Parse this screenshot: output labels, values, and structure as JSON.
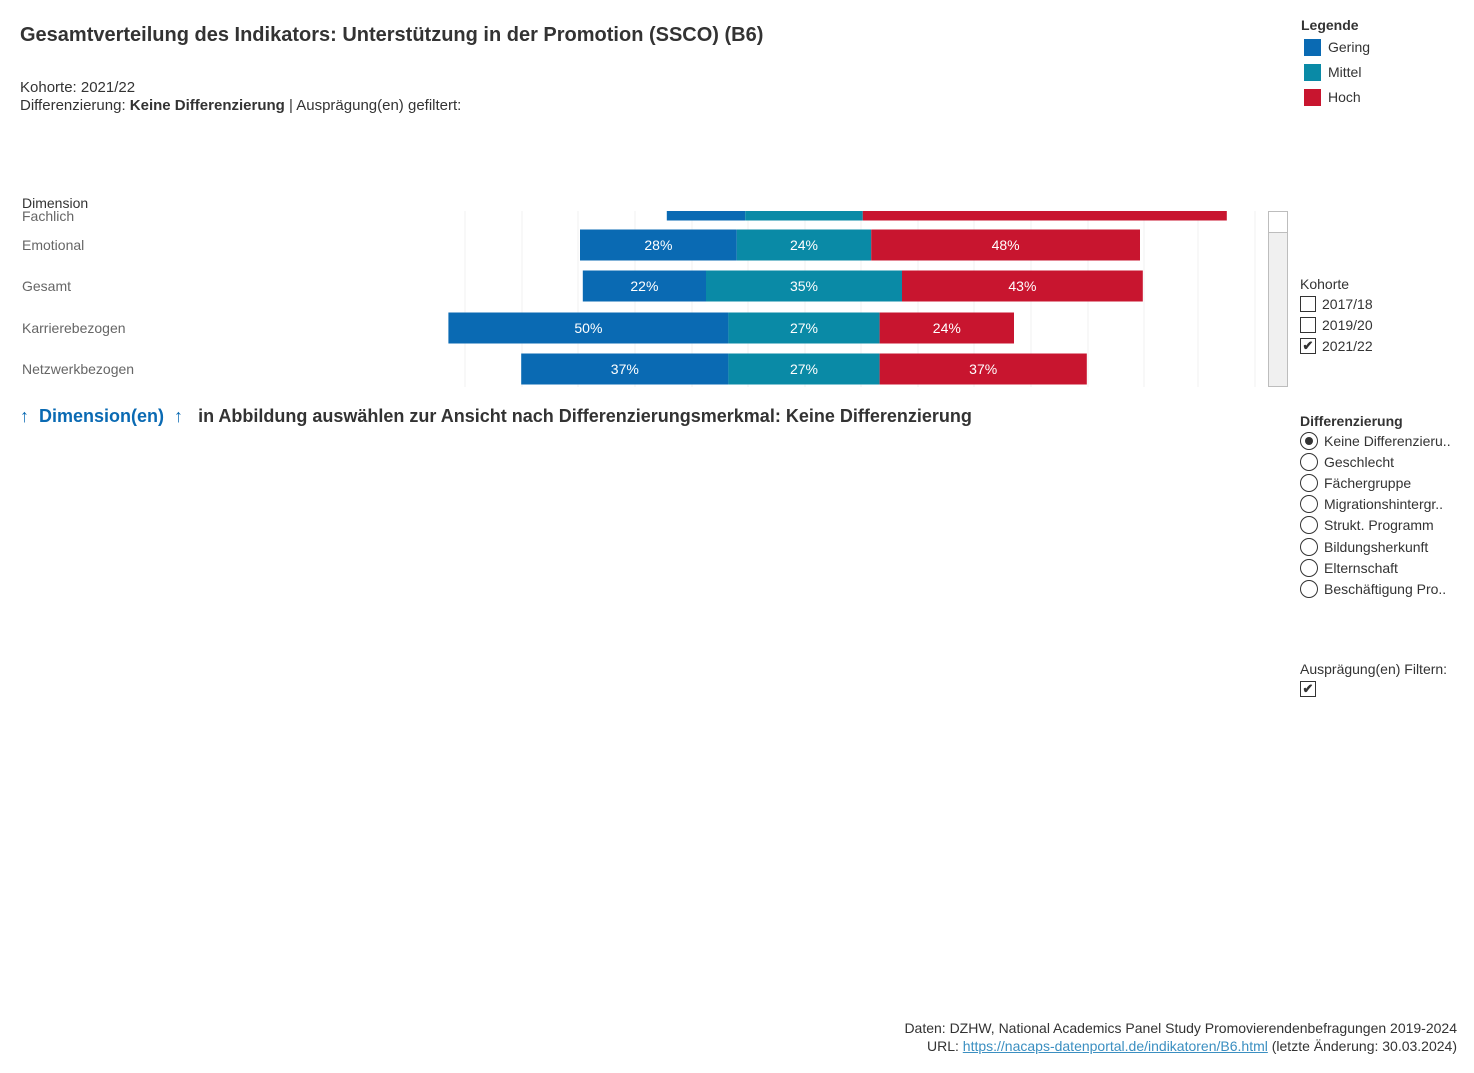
{
  "header": {
    "title": "Gesamtverteilung des Indikators: Unterstützung in der Promotion (SSCO) (B6)",
    "cohort_line": "Kohorte: 2021/22",
    "diff_prefix": "Differenzierung: ",
    "diff_value": "Keine Differenzierung",
    "diff_suffix": " | Ausprägung(en) gefiltert:"
  },
  "chart_data": {
    "type": "bar",
    "stacked": true,
    "diverging": true,
    "row_header": "Dimension",
    "categories": [
      "Fachlich",
      "Emotional",
      "Gesamt",
      "Karrierebezogen",
      "Netzwerkbezogen"
    ],
    "series": [
      {
        "name": "Gering",
        "color": "#0a6ab3",
        "values": [
          14,
          28,
          22,
          50,
          37
        ],
        "labels": [
          "",
          "28%",
          "22%",
          "50%",
          "37%"
        ]
      },
      {
        "name": "Mittel",
        "color": "#0a8aa6",
        "values": [
          21,
          24,
          35,
          27,
          27
        ],
        "labels": [
          "",
          "24%",
          "35%",
          "27%",
          "27%"
        ]
      },
      {
        "name": "Hoch",
        "color": "#c8152f",
        "values": [
          65,
          48,
          43,
          24,
          37
        ],
        "labels": [
          "",
          "48%",
          "43%",
          "24%",
          "37%"
        ]
      }
    ],
    "gridlines": true
  },
  "hint": {
    "arrow_left": "↑",
    "dimension": "Dimension(en)",
    "arrow_right": "↑",
    "text": "in Abbildung auswählen zur Ansicht nach Differenzierungsmerkmal: Keine Differenzierung"
  },
  "legend": {
    "title": "Legende",
    "items": [
      {
        "label": "Gering",
        "color": "#0a6ab3"
      },
      {
        "label": "Mittel",
        "color": "#0a8aa6"
      },
      {
        "label": "Hoch",
        "color": "#c8152f"
      }
    ]
  },
  "kohorte": {
    "title": "Kohorte",
    "options": [
      {
        "label": "2017/18",
        "checked": false
      },
      {
        "label": "2019/20",
        "checked": false
      },
      {
        "label": "2021/22",
        "checked": true
      }
    ]
  },
  "differenzierung": {
    "title": "Differenzierung",
    "options": [
      {
        "label": "Keine Differenzieru..",
        "selected": true
      },
      {
        "label": "Geschlecht",
        "selected": false
      },
      {
        "label": "Fächergruppe",
        "selected": false
      },
      {
        "label": "Migrationshintergr..",
        "selected": false
      },
      {
        "label": "Strukt. Programm",
        "selected": false
      },
      {
        "label": "Bildungsherkunft",
        "selected": false
      },
      {
        "label": "Elternschaft",
        "selected": false
      },
      {
        "label": "Beschäftigung Pro..",
        "selected": false
      }
    ]
  },
  "auspraegung_filter": {
    "title": "Ausprägung(en) Filtern:",
    "checked": true
  },
  "footer": {
    "source": "Daten: DZHW, National Academics Panel Study Promovierendenbefragungen 2019-2024",
    "url_prefix": "URL: ",
    "url": "https://nacaps-datenportal.de/indikatoren/B6.html",
    "url_suffix": " (letzte Änderung: 30.03.2024)"
  },
  "checkmark": "✔"
}
